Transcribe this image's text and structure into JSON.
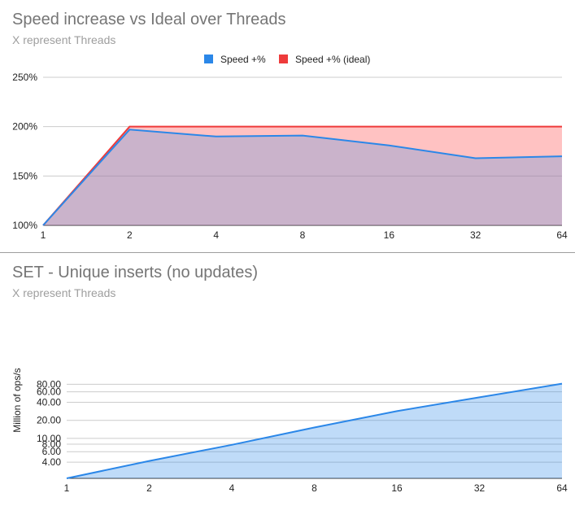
{
  "charts": [
    {
      "title": "Speed increase vs Ideal over Threads",
      "subtitle": "X represent Threads",
      "legend": [
        {
          "label": "Speed +%",
          "color": "#2b87e8"
        },
        {
          "label": "Speed +% (ideal)",
          "color": "#ee3b3b"
        }
      ]
    },
    {
      "title": "SET - Unique inserts (no updates)",
      "subtitle": "X represent Threads",
      "ylabel": "Million of ops/s"
    }
  ],
  "chart_data": [
    {
      "type": "area",
      "title": "Speed increase vs Ideal over Threads",
      "subtitle": "X represent Threads",
      "x": [
        "1",
        "2",
        "4",
        "8",
        "16",
        "32",
        "64"
      ],
      "series": [
        {
          "name": "Speed +%",
          "values": [
            100,
            197,
            190,
            191,
            181,
            168,
            170
          ],
          "color": "#2b87e8"
        },
        {
          "name": "Speed +% (ideal)",
          "values": [
            100,
            200,
            200,
            200,
            200,
            200,
            200
          ],
          "color": "#ee3b3b"
        }
      ],
      "yticks": [
        "100%",
        "150%",
        "200%",
        "250%"
      ],
      "ytick_values": [
        100,
        150,
        200,
        250
      ],
      "ylim": [
        100,
        250
      ],
      "legend_position": "top",
      "grid": true
    },
    {
      "type": "area",
      "title": "SET - Unique inserts (no updates)",
      "subtitle": "X represent Threads",
      "ylabel": "Million of ops/s",
      "yscale": "log",
      "x": [
        "1",
        "2",
        "4",
        "8",
        "16",
        "32",
        "64"
      ],
      "series": [
        {
          "values": [
            2.15,
            4.2,
            7.8,
            15.2,
            28.5,
            48.5,
            82
          ],
          "color": "#2b87e8"
        }
      ],
      "yticks": [
        "4.00",
        "6.00",
        "8.00",
        "10.00",
        "20.00",
        "40.00",
        "60.00",
        "80.00"
      ],
      "ytick_values": [
        4,
        6,
        8,
        10,
        20,
        40,
        60,
        80
      ],
      "ylim": [
        2.15,
        90
      ],
      "grid": true
    }
  ]
}
